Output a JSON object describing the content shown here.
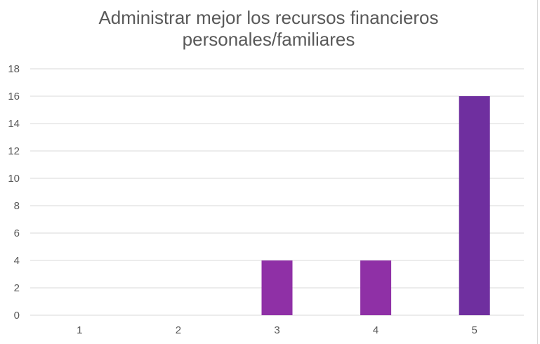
{
  "chart_data": {
    "type": "bar",
    "title_lines": [
      "Administrar mejor los recursos financieros",
      "personales/familiares"
    ],
    "categories": [
      "1",
      "2",
      "3",
      "4",
      "5"
    ],
    "values": [
      0,
      0,
      4,
      4,
      16
    ],
    "ylim": [
      0,
      18
    ],
    "yticks": [
      "0",
      "2",
      "4",
      "6",
      "8",
      "10",
      "12",
      "14",
      "16",
      "18"
    ],
    "grid": true,
    "bar_colors": [
      "#8f30a6",
      "#8f30a6",
      "#8f30a6",
      "#8f30a6",
      "#6f2f9f"
    ],
    "xlabel": "",
    "ylabel": ""
  }
}
